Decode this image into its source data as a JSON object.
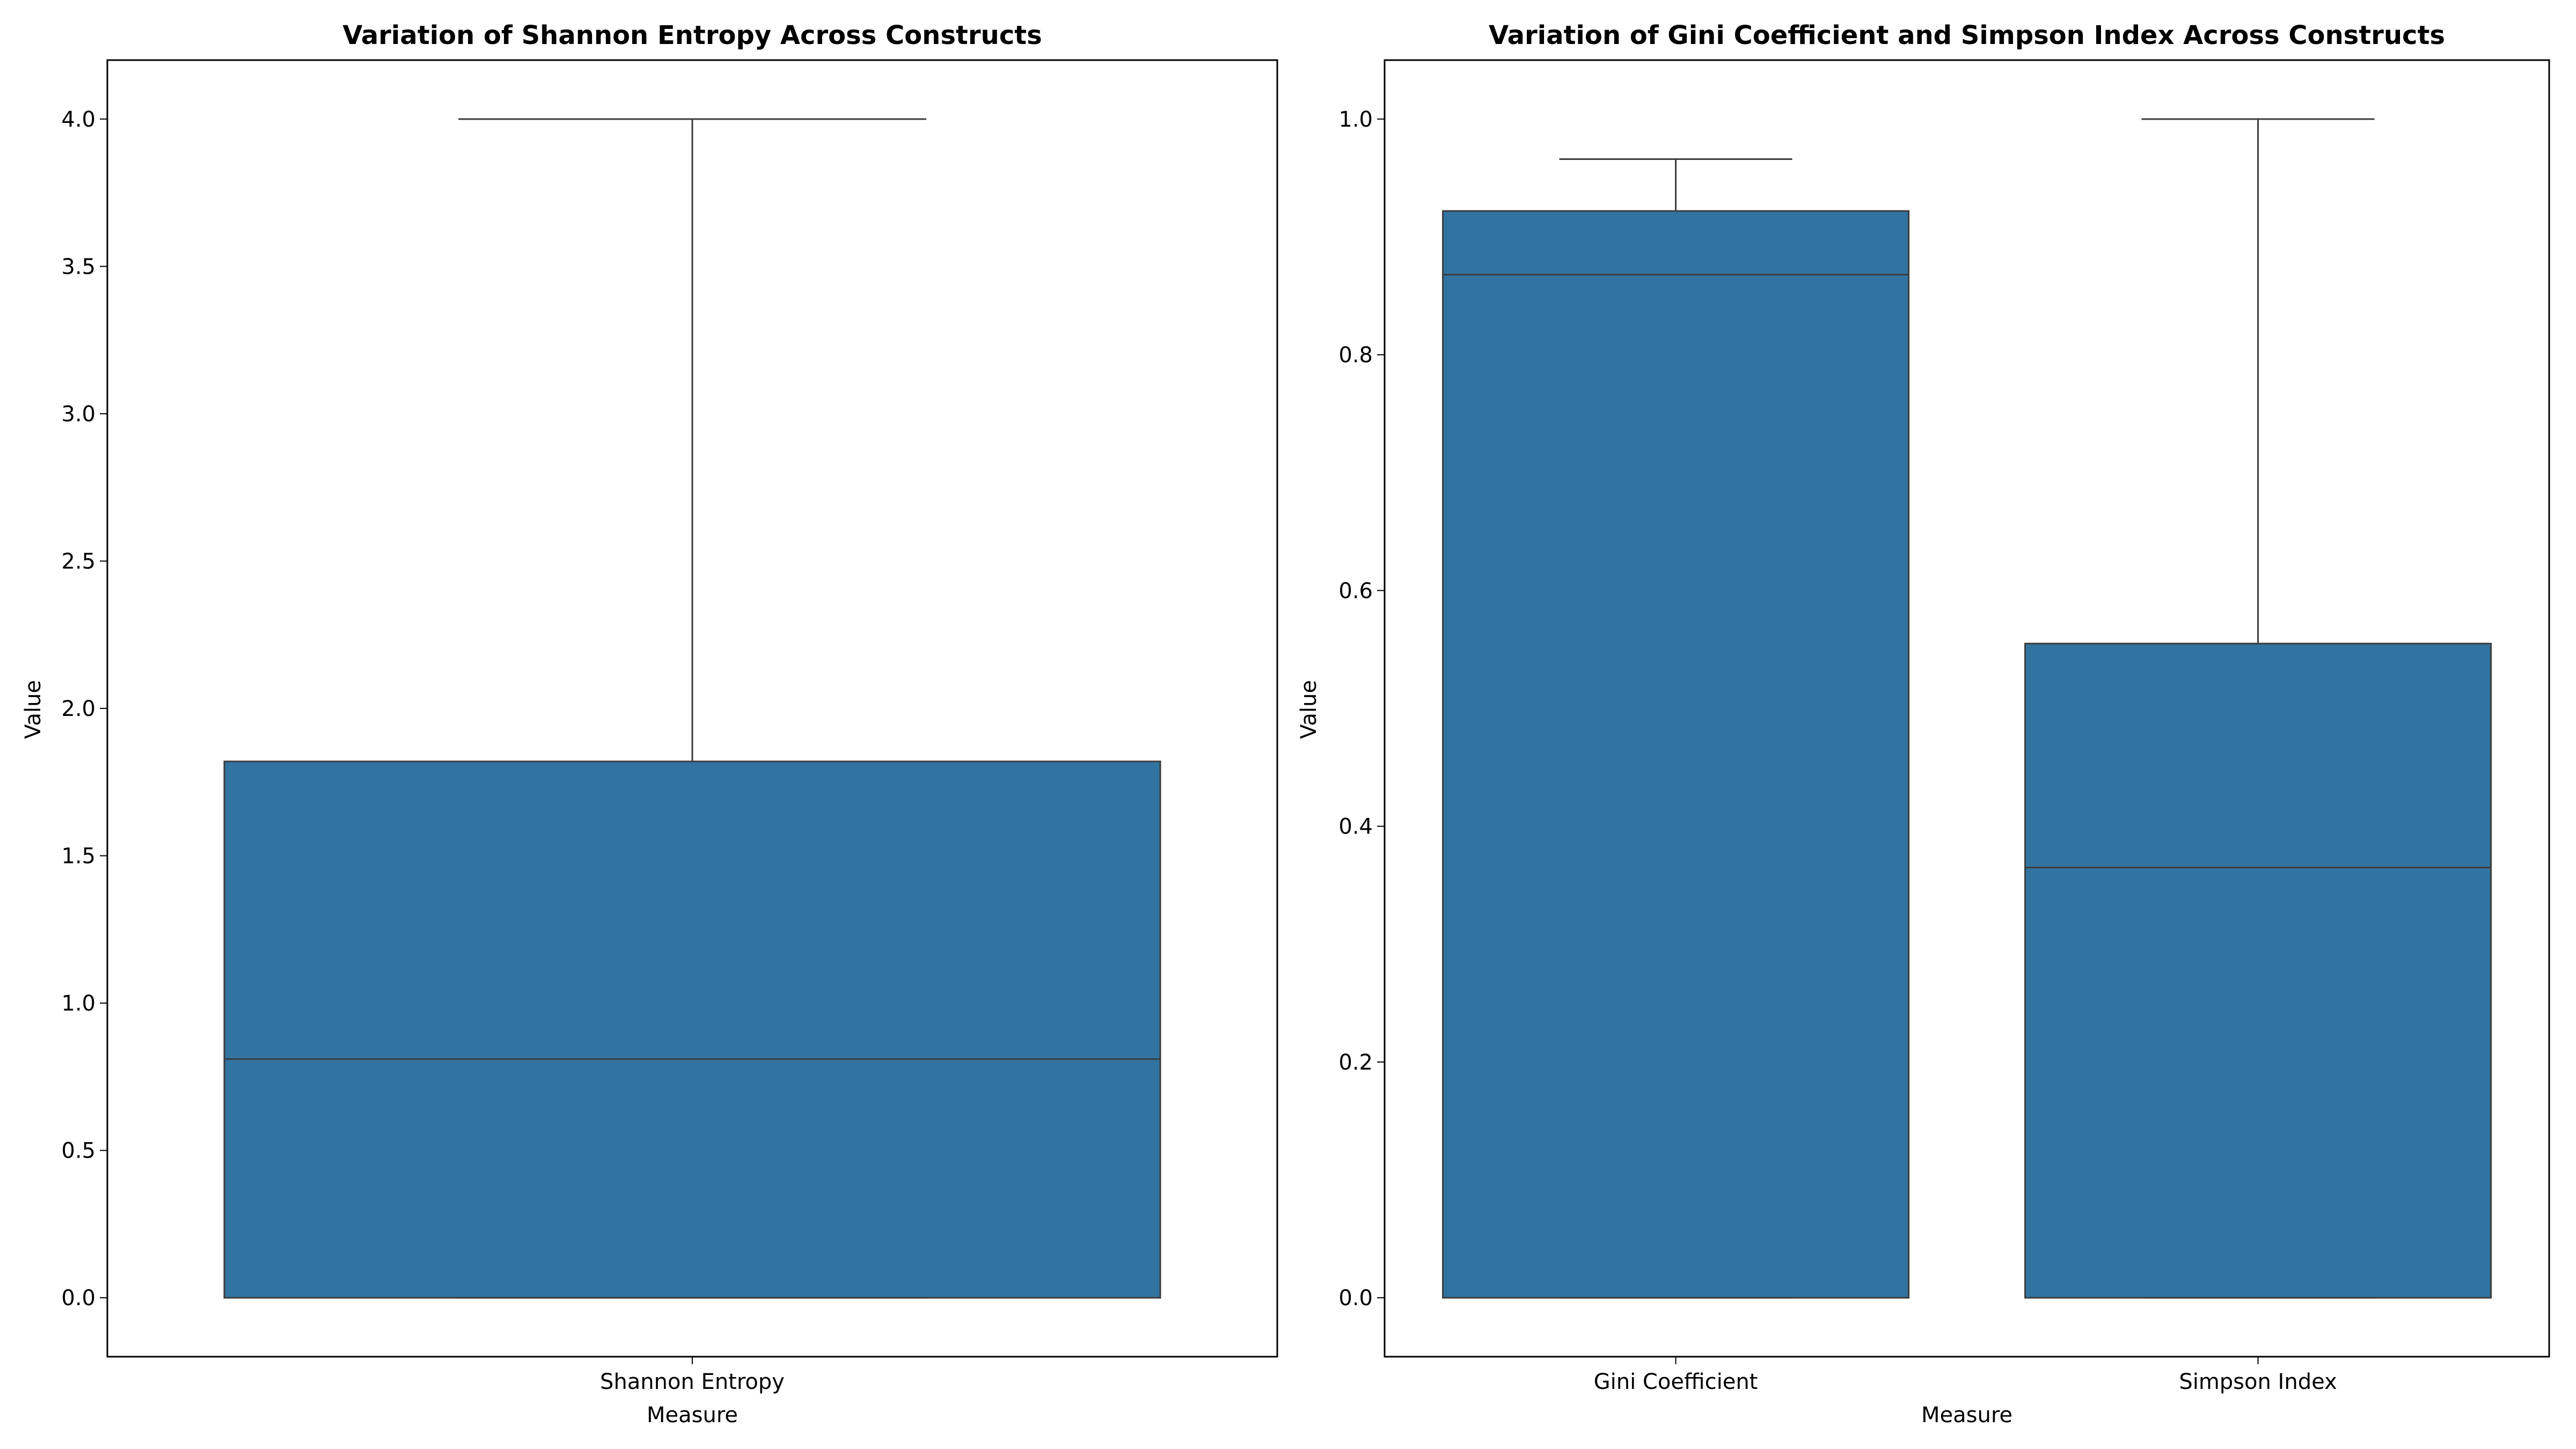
{
  "colors": {
    "box_fill": "#3274a1",
    "line": "#3d3d3d",
    "axes": "#000000",
    "background": "#ffffff"
  },
  "chart_data": [
    {
      "type": "box",
      "title": "Variation of Shannon Entropy Across Constructs",
      "xlabel": "Measure",
      "ylabel": "Value",
      "ylim": [
        -0.2,
        4.2
      ],
      "yticks": [
        0.0,
        0.5,
        1.0,
        1.5,
        2.0,
        2.5,
        3.0,
        3.5,
        4.0
      ],
      "ytick_labels": [
        "0.0",
        "0.5",
        "1.0",
        "1.5",
        "2.0",
        "2.5",
        "3.0",
        "3.5",
        "4.0"
      ],
      "categories": [
        "Shannon Entropy"
      ],
      "boxes": [
        {
          "category": "Shannon Entropy",
          "whisker_low": 0.0,
          "q1": 0.0,
          "median": 0.81,
          "q3": 1.82,
          "whisker_high": 4.0
        }
      ],
      "grid": false
    },
    {
      "type": "box",
      "title": "Variation of Gini Coefficient and Simpson Index Across Constructs",
      "xlabel": "Measure",
      "ylabel": "Value",
      "ylim": [
        -0.05,
        1.05
      ],
      "yticks": [
        0.0,
        0.2,
        0.4,
        0.6,
        0.8,
        1.0
      ],
      "ytick_labels": [
        "0.0",
        "0.2",
        "0.4",
        "0.6",
        "0.8",
        "1.0"
      ],
      "categories": [
        "Gini Coefficient",
        "Simpson Index"
      ],
      "boxes": [
        {
          "category": "Gini Coefficient",
          "whisker_low": 0.0,
          "q1": 0.0,
          "median": 0.868,
          "q3": 0.922,
          "whisker_high": 0.966
        },
        {
          "category": "Simpson Index",
          "whisker_low": 0.0,
          "q1": 0.0,
          "median": 0.365,
          "q3": 0.555,
          "whisker_high": 1.0
        }
      ],
      "grid": false
    }
  ]
}
